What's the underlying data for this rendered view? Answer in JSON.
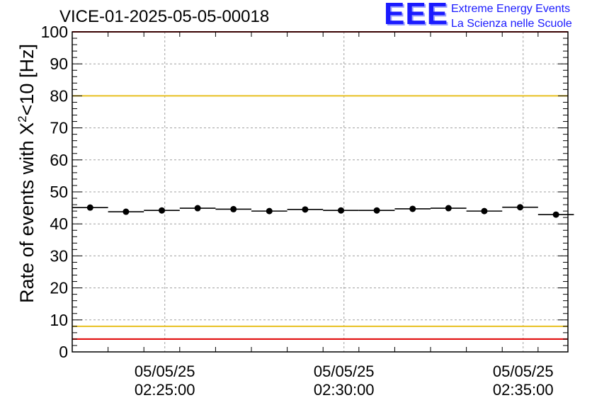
{
  "chart_data": {
    "type": "scatter",
    "title": "VICE-01-2025-05-05-00018",
    "ylabel_main": "Rate of events with X",
    "ylabel_sup": "2",
    "ylabel_tail": "<10 [Hz]",
    "ylim": [
      0,
      100
    ],
    "yticks": [
      0,
      10,
      20,
      30,
      40,
      50,
      60,
      70,
      80,
      90,
      100
    ],
    "x_tick_labels": [
      {
        "date": "05/05/25",
        "time": "02:25:00"
      },
      {
        "date": "05/05/25",
        "time": "02:30:00"
      },
      {
        "date": "05/05/25",
        "time": "02:35:00"
      }
    ],
    "x_major_ticks": [
      "02:25:00",
      "02:30:00",
      "02:35:00"
    ],
    "xlim": [
      "02:22:25",
      "02:36:15"
    ],
    "bin_width_s": 60,
    "grid": true,
    "series": [
      {
        "x": [
          "02:22:55",
          "02:23:55",
          "02:24:55",
          "02:25:55",
          "02:26:55",
          "02:27:55",
          "02:28:55",
          "02:29:55",
          "02:30:55",
          "02:31:55",
          "02:32:55",
          "02:33:55",
          "02:34:55",
          "02:35:55"
        ],
        "values": [
          45.1,
          43.8,
          44.2,
          44.9,
          44.6,
          44.0,
          44.5,
          44.2,
          44.2,
          44.7,
          44.9,
          44.0,
          45.2,
          42.9
        ],
        "color": "#000000"
      }
    ],
    "reference_lines": [
      {
        "y": 80,
        "color": "#e8c020"
      },
      {
        "y": 8,
        "color": "#e8c020"
      },
      {
        "y": 100,
        "color": "#e00000"
      },
      {
        "y": 4,
        "color": "#e00000"
      }
    ]
  },
  "logo": {
    "mark": "EEE",
    "line1": "Extreme Energy Events",
    "line2": "La Scienza nelle Scuole",
    "color": "#1a1aff"
  }
}
